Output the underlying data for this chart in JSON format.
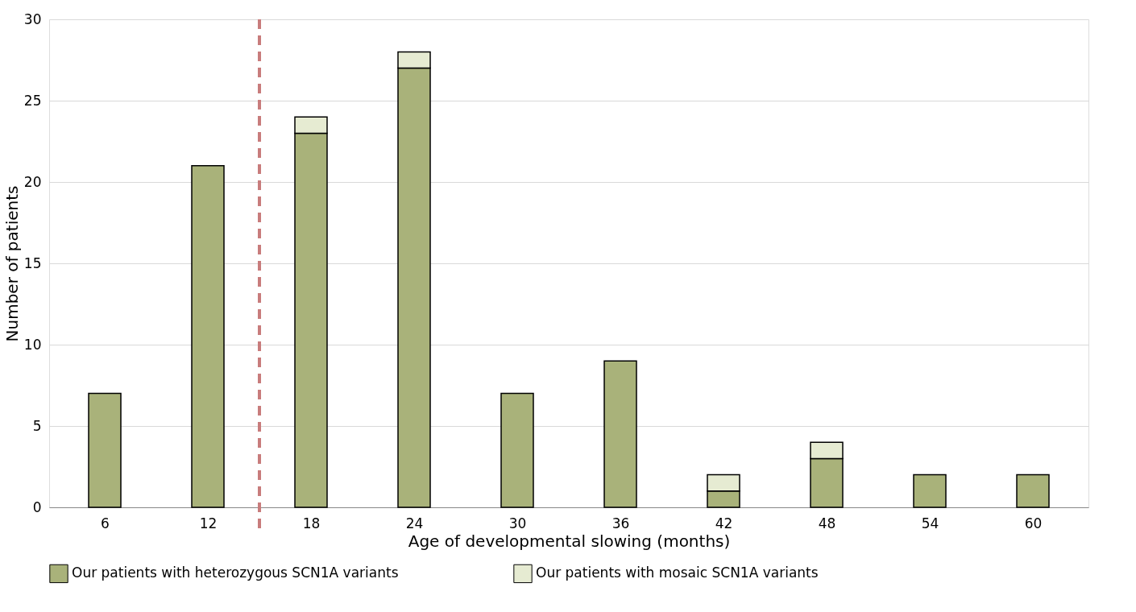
{
  "chart_data": {
    "type": "bar",
    "stacked": true,
    "xlabel": "Age of developmental slowing (months)",
    "ylabel": "Number of patients",
    "x": [
      6,
      12,
      18,
      24,
      30,
      36,
      42,
      48,
      54,
      60
    ],
    "series": [
      {
        "name": "Our patients with heterozygous SCN1A variants",
        "color": "#a9b27a",
        "values": [
          7,
          21,
          23,
          27,
          7,
          9,
          1,
          3,
          2,
          2
        ]
      },
      {
        "name": "Our patients with mosaic SCN1A variants",
        "color": "#e6ebd2",
        "values": [
          0,
          0,
          1,
          1,
          0,
          0,
          1,
          1,
          0,
          0
        ]
      }
    ],
    "xlim": [
      3,
      63
    ],
    "xticks": [
      6,
      12,
      18,
      24,
      30,
      36,
      42,
      48,
      54,
      60
    ],
    "ylim": [
      0,
      30
    ],
    "yticks": [
      0,
      5,
      10,
      15,
      20,
      25,
      30
    ],
    "ref_lines": [
      {
        "axis": "x",
        "value": 15,
        "color": "#c87c7c",
        "line_style": "dashed"
      }
    ],
    "grid": "y",
    "legend": "bottom"
  }
}
